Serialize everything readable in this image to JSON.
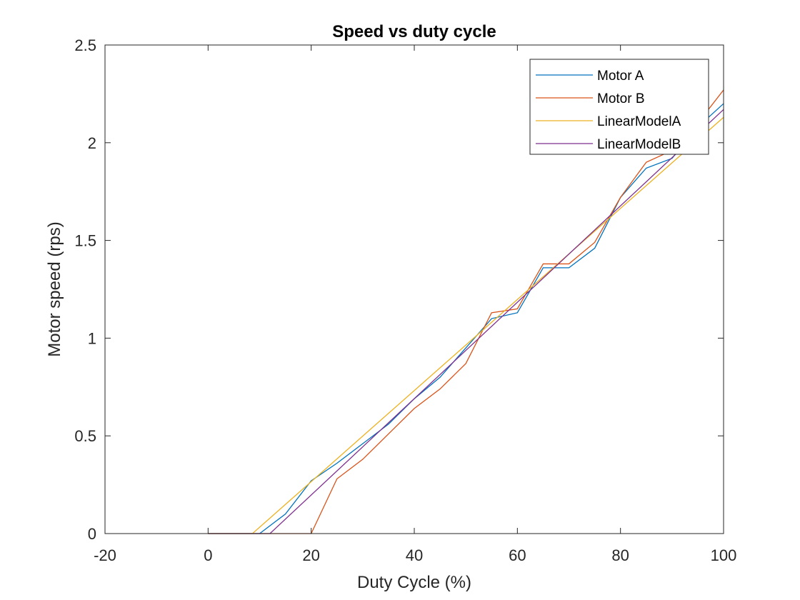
{
  "chart_data": {
    "type": "line",
    "title": "Speed vs duty cycle",
    "xlabel": "Duty Cycle (%)",
    "ylabel": "Motor speed (rps)",
    "xlim": [
      -20,
      100
    ],
    "ylim": [
      0,
      2.5
    ],
    "xticks": [
      -20,
      0,
      20,
      40,
      60,
      80,
      100
    ],
    "xtick_labels": [
      "-20",
      "0",
      "20",
      "40",
      "60",
      "80",
      "100"
    ],
    "yticks": [
      0,
      0.5,
      1,
      1.5,
      2,
      2.5
    ],
    "ytick_labels": [
      "0",
      "0.5",
      "1",
      "1.5",
      "2",
      "2.5"
    ],
    "grid": false,
    "legend_position": "top-right",
    "series": [
      {
        "name": "Motor A",
        "color": "#0072BD",
        "x": [
          0,
          10,
          15,
          20,
          25,
          30,
          35,
          40,
          45,
          50,
          55,
          60,
          65,
          70,
          75,
          80,
          85,
          90,
          95,
          100
        ],
        "y": [
          0,
          0,
          0.1,
          0.27,
          0.36,
          0.46,
          0.56,
          0.69,
          0.8,
          0.95,
          1.1,
          1.13,
          1.36,
          1.36,
          1.46,
          1.72,
          1.87,
          1.92,
          2.08,
          2.2
        ]
      },
      {
        "name": "Motor B",
        "color": "#D95319",
        "x": [
          0,
          10,
          15,
          20,
          25,
          30,
          35,
          40,
          45,
          50,
          55,
          60,
          65,
          70,
          75,
          80,
          85,
          90,
          95,
          100
        ],
        "y": [
          0,
          0,
          0,
          0,
          0.28,
          0.38,
          0.51,
          0.64,
          0.74,
          0.87,
          1.13,
          1.15,
          1.38,
          1.38,
          1.49,
          1.72,
          1.9,
          1.96,
          2.1,
          2.27
        ]
      },
      {
        "name": "LinearModelA",
        "color": "#EDB120",
        "x": [
          0,
          8.6,
          100
        ],
        "y": [
          0,
          0,
          2.13
        ]
      },
      {
        "name": "LinearModelB",
        "color": "#7E2F8E",
        "x": [
          0,
          12,
          100
        ],
        "y": [
          0,
          0,
          2.17
        ]
      }
    ]
  }
}
